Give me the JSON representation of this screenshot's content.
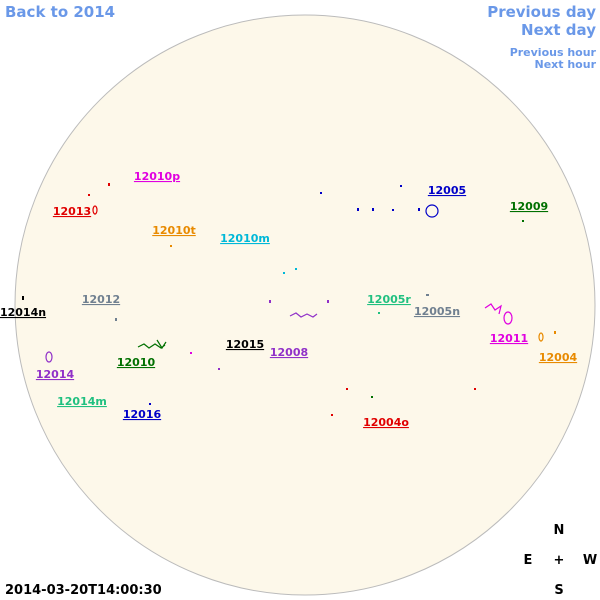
{
  "nav": {
    "back": "Back to 2014",
    "previous_day": "Previous day",
    "next_day": "Next day",
    "previous_hour": "Previous hour",
    "next_hour": "Next hour"
  },
  "regions": [
    {
      "label": "12010p",
      "color": "#e000e0"
    },
    {
      "label": "12013",
      "color": "#e00000"
    },
    {
      "label": "12010t",
      "color": "#e88a00"
    },
    {
      "label": "12010m",
      "color": "#00b8d8"
    },
    {
      "label": "12005",
      "color": "#0000c8"
    },
    {
      "label": "12009",
      "color": "#007000"
    },
    {
      "label": "12012",
      "color": "#708090"
    },
    {
      "label": "12014n",
      "color": "#000000"
    },
    {
      "label": "12005r",
      "color": "#20c080"
    },
    {
      "label": "12005n",
      "color": "#708090"
    },
    {
      "label": "12011",
      "color": "#e000e0"
    },
    {
      "label": "12015",
      "color": "#000000"
    },
    {
      "label": "12008",
      "color": "#9030c8"
    },
    {
      "label": "12010",
      "color": "#007000"
    },
    {
      "label": "12004",
      "color": "#e88a00"
    },
    {
      "label": "12014",
      "color": "#9030c8"
    },
    {
      "label": "12014m",
      "color": "#20c080"
    },
    {
      "label": "12016",
      "color": "#0000c8"
    },
    {
      "label": "12004o",
      "color": "#e00000"
    }
  ],
  "compass": {
    "north": "N",
    "east": "E",
    "center": "+",
    "west": "W",
    "south": "S"
  },
  "timestamp": "2014-03-20T14:00:30"
}
